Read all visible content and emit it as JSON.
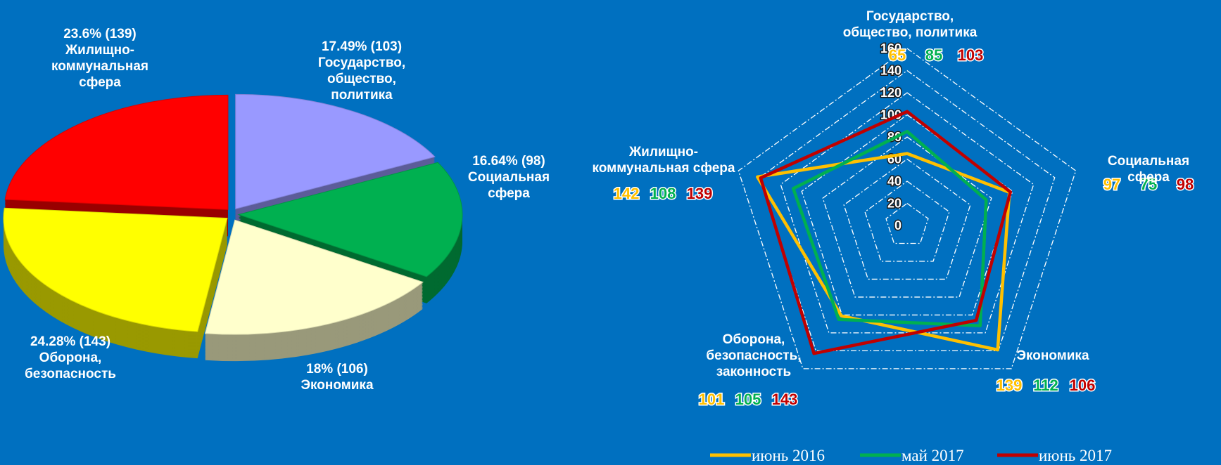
{
  "chart_data": [
    {
      "type": "pie",
      "categories": [
        "Государство,\nобщество,\nполитика",
        "Социальная\nсфера",
        "Экономика",
        "Оборона,\nбезопасность",
        "Жилищно-\nкоммунальная\nсфера"
      ],
      "values": [
        103,
        98,
        106,
        143,
        139
      ],
      "value_labels": [
        "17.49% (103)",
        "16.64% (98)",
        "18% (106)",
        "24.28% (143)",
        "23.6% (139)"
      ],
      "colors": [
        "#9999ff",
        "#00b050",
        "#ffffcc",
        "#ffff00",
        "#ff0000"
      ]
    },
    {
      "type": "radar",
      "categories": [
        "Государство,\nобщество, политика",
        "Социальная сфера",
        "Экономика",
        "Оборона,\nбезопасность,\nзаконность",
        "Жилищно-\nкоммунальная сфера"
      ],
      "series": [
        {
          "name": "июнь 2016",
          "color": "#ffc000",
          "values": [
            65,
            97,
            139,
            101,
            142
          ]
        },
        {
          "name": "май 2017",
          "color": "#00b050",
          "values": [
            85,
            75,
            112,
            105,
            108
          ]
        },
        {
          "name": "июнь 2017",
          "color": "#c00000",
          "values": [
            103,
            98,
            106,
            143,
            139
          ]
        }
      ],
      "ylim": [
        0,
        160
      ],
      "yticks": [
        0,
        20,
        40,
        60,
        80,
        100,
        120,
        140,
        160
      ],
      "grid": true,
      "legend": "bottom"
    }
  ]
}
